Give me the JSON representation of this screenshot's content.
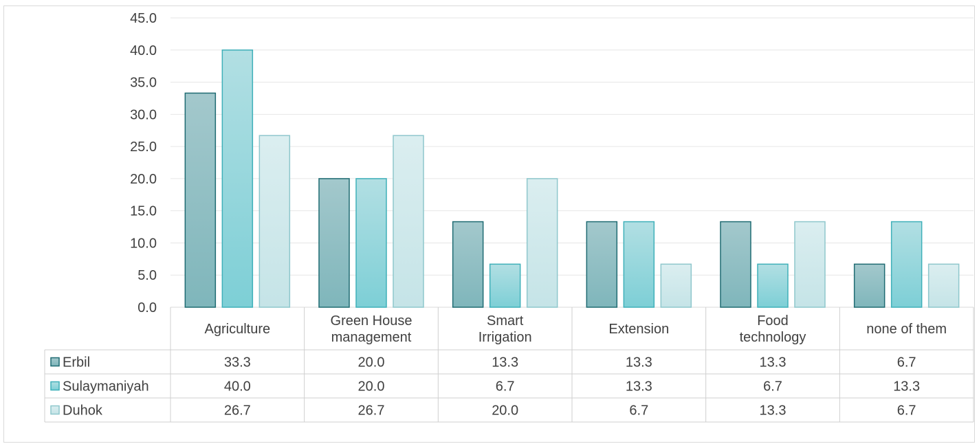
{
  "chart_data": {
    "type": "bar",
    "title": "",
    "xlabel": "",
    "ylabel": "",
    "ylim": [
      0,
      45
    ],
    "ytick_step": 5,
    "ytick_labels": [
      "0.0",
      "5.0",
      "10.0",
      "15.0",
      "20.0",
      "25.0",
      "30.0",
      "35.0",
      "40.0",
      "45.0"
    ],
    "grid": true,
    "legend": "data-table-left",
    "categories": [
      [
        "Agriculture"
      ],
      [
        "Green House",
        "management"
      ],
      [
        "Smart",
        "Irrigation"
      ],
      [
        "Extension"
      ],
      [
        "Food",
        "technology"
      ],
      [
        "none of them"
      ]
    ],
    "series": [
      {
        "name": "Erbil",
        "values": [
          33.3,
          20.0,
          13.3,
          13.3,
          13.3,
          6.7
        ],
        "labels": [
          "33.3",
          "20.0",
          "13.3",
          "13.3",
          "13.3",
          "6.7"
        ],
        "color_top": "#a3c8cc",
        "color_bottom": "#7fb6bb",
        "stroke": "#1f6b72"
      },
      {
        "name": "Sulaymaniyah",
        "values": [
          40.0,
          20.0,
          6.7,
          13.3,
          6.7,
          13.3
        ],
        "labels": [
          "40.0",
          "20.0",
          "6.7",
          "13.3",
          "6.7",
          "13.3"
        ],
        "color_top": "#b2dfe3",
        "color_bottom": "#7dcfd6",
        "stroke": "#3fb0b9"
      },
      {
        "name": "Duhok",
        "values": [
          26.7,
          26.7,
          20.0,
          6.7,
          13.3,
          6.7
        ],
        "labels": [
          "26.7",
          "26.7",
          "20.0",
          "6.7",
          "13.3",
          "6.7"
        ],
        "color_top": "#dbeef0",
        "color_bottom": "#c5e4e7",
        "stroke": "#8ec7cc"
      }
    ]
  }
}
